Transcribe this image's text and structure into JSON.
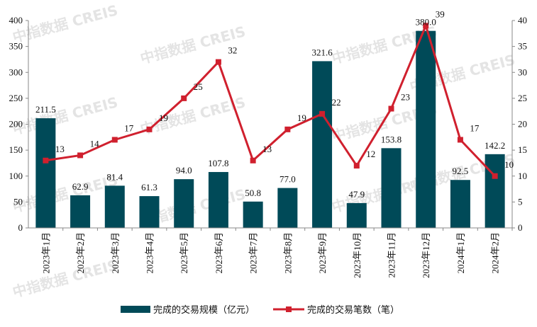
{
  "chart_data": {
    "type": "bar+line",
    "categories": [
      "2023年1月",
      "2023年2月",
      "2023年3月",
      "2023年4月",
      "2023年5月",
      "2023年6月",
      "2023年7月",
      "2023年8月",
      "2023年9月",
      "2023年10月",
      "2023年11月",
      "2023年12月",
      "2024年1月",
      "2024年2月"
    ],
    "series": [
      {
        "name": "完成的交易规模（亿元）",
        "type": "bar",
        "axis": "left",
        "color": "#004a58",
        "values": [
          211.5,
          62.9,
          81.4,
          61.3,
          94.0,
          107.8,
          50.8,
          77.0,
          321.6,
          47.9,
          153.8,
          380.0,
          92.5,
          142.2
        ],
        "labels": [
          "211.5",
          "62.9",
          "81.4",
          "61.3",
          "94.0",
          "107.8",
          "50.8",
          "77.0",
          "321.6",
          "47.9",
          "153.8",
          "380.0",
          "92.5",
          "142.2"
        ]
      },
      {
        "name": "完成的交易笔数（笔）",
        "type": "line",
        "axis": "right",
        "color": "#d0202e",
        "values": [
          13,
          14,
          17,
          19,
          25,
          32,
          13,
          19,
          22,
          12,
          23,
          39,
          17,
          10
        ]
      }
    ],
    "left_axis": {
      "ylim": [
        0,
        400
      ],
      "ticks": [
        0,
        50,
        100,
        150,
        200,
        250,
        300,
        350,
        400
      ]
    },
    "right_axis": {
      "ylim": [
        0,
        40
      ],
      "ticks": [
        0,
        5,
        10,
        15,
        20,
        25,
        30,
        35,
        40
      ]
    },
    "grid": false,
    "legend": "bottom"
  },
  "watermark": "中指数据  CREIS"
}
